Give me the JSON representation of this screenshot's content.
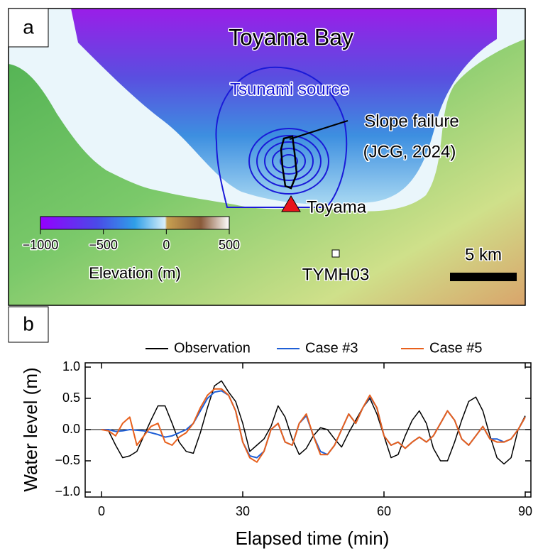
{
  "map": {
    "panel_label": "a",
    "title": "Toyama Bay",
    "source_label": "Tsunami source",
    "slope_failure_label": [
      "Slope failure",
      "(JCG, 2024)"
    ],
    "station_label": "Toyama",
    "gauge_label": "TYMH03",
    "scale_label": "5 km",
    "colorbar": {
      "label": "Elevation (m)",
      "lim": [
        -1000,
        500
      ],
      "ticks": [
        {
          "value": -1000,
          "label": "−1000"
        },
        {
          "value": -500,
          "label": "−500"
        },
        {
          "value": 0,
          "label": "0"
        },
        {
          "value": 500,
          "label": "500"
        }
      ]
    }
  },
  "chart_data": {
    "type": "line",
    "panel_label": "b",
    "xlabel": "Elapsed time (min)",
    "ylabel": "Water level (m)",
    "xlim": [
      0,
      90
    ],
    "ylim": [
      -1,
      1
    ],
    "xticks": [
      0,
      30,
      60,
      90
    ],
    "yticks": [
      {
        "value": -1,
        "label": "−1.0"
      },
      {
        "value": -0.5,
        "label": "−0.5"
      },
      {
        "value": 0,
        "label": "0.0"
      },
      {
        "value": 0.5,
        "label": "0.5"
      },
      {
        "value": 1,
        "label": "1.0"
      }
    ],
    "legend": "top",
    "x": [
      0,
      1.5,
      3,
      4.5,
      6,
      7.5,
      9,
      10.5,
      12,
      13.5,
      15,
      16.5,
      18,
      19.5,
      21,
      22.5,
      24,
      25.5,
      27,
      28.5,
      30,
      31.5,
      33,
      34.5,
      36,
      37.5,
      39,
      40.5,
      42,
      43.5,
      45,
      46.5,
      48,
      49.5,
      51,
      52.5,
      54,
      55.5,
      57,
      58.5,
      60,
      61.5,
      63,
      64.5,
      66,
      67.5,
      69,
      70.5,
      72,
      73.5,
      75,
      76.5,
      78,
      79.5,
      81,
      82.5,
      84,
      85.5,
      87,
      88.5,
      90
    ],
    "series": [
      {
        "name": "Observation",
        "color": "#000000",
        "values": [
          0,
          -0.02,
          -0.25,
          -0.45,
          -0.42,
          -0.35,
          -0.1,
          0.15,
          0.38,
          0.38,
          0.1,
          -0.2,
          -0.35,
          -0.38,
          -0.05,
          0.35,
          0.7,
          0.78,
          0.6,
          0.45,
          0.1,
          -0.35,
          -0.25,
          -0.15,
          0.05,
          0.38,
          0.2,
          -0.15,
          -0.4,
          -0.3,
          -0.1,
          0.03,
          0,
          -0.15,
          -0.28,
          -0.05,
          0.15,
          0.35,
          0.5,
          0.25,
          -0.1,
          -0.45,
          -0.4,
          -0.1,
          0.15,
          0.3,
          0.1,
          -0.3,
          -0.5,
          -0.5,
          -0.2,
          0.15,
          0.45,
          0.52,
          0.3,
          -0.1,
          -0.45,
          -0.55,
          -0.45,
          0,
          0.22
        ]
      },
      {
        "name": "Case #3",
        "color": "#1f5fd6",
        "values": [
          0,
          0,
          -0.03,
          -0.02,
          0,
          -0.01,
          -0.02,
          -0.05,
          -0.08,
          -0.12,
          -0.1,
          -0.05,
          0,
          0.1,
          0.3,
          0.5,
          0.6,
          0.62,
          0.55,
          0.3,
          -0.2,
          -0.42,
          -0.45,
          -0.35,
          0,
          0.1,
          -0.2,
          -0.25,
          0.1,
          0.22,
          -0.1,
          -0.35,
          -0.4,
          -0.25,
          0,
          0.25,
          0.1,
          0.35,
          0.53,
          0.35,
          -0.1,
          -0.25,
          -0.2,
          -0.3,
          -0.2,
          -0.12,
          -0.2,
          -0.1,
          0.1,
          0.3,
          0.15,
          -0.15,
          -0.25,
          -0.1,
          0.05,
          -0.15,
          -0.15,
          -0.2,
          -0.15,
          0,
          0.2
        ]
      },
      {
        "name": "Case #5",
        "color": "#e8601c",
        "values": [
          0,
          -0.02,
          -0.1,
          0.1,
          0.2,
          -0.25,
          -0.1,
          0.05,
          0.1,
          -0.2,
          -0.25,
          -0.12,
          -0.05,
          0.1,
          0.35,
          0.55,
          0.65,
          0.65,
          0.55,
          0.3,
          -0.2,
          -0.45,
          -0.52,
          -0.35,
          0,
          0.1,
          -0.2,
          -0.25,
          0.1,
          0.25,
          -0.1,
          -0.4,
          -0.4,
          -0.25,
          0,
          0.25,
          0.1,
          0.35,
          0.55,
          0.35,
          -0.1,
          -0.25,
          -0.2,
          -0.3,
          -0.2,
          -0.12,
          -0.2,
          -0.1,
          0.1,
          0.3,
          0.15,
          -0.15,
          -0.25,
          -0.1,
          0.05,
          -0.15,
          -0.2,
          -0.2,
          -0.15,
          0,
          0.2
        ]
      }
    ]
  }
}
